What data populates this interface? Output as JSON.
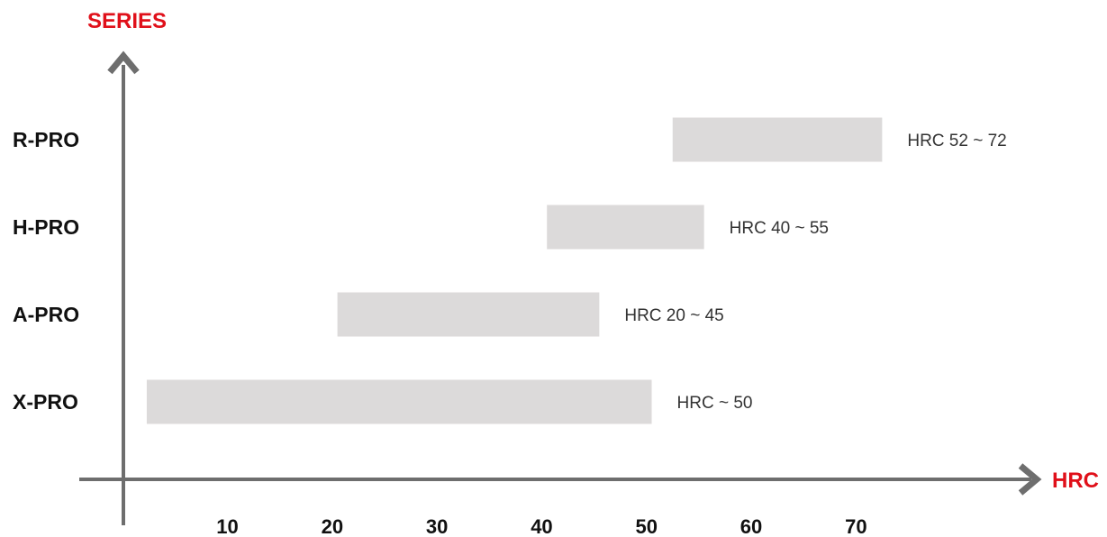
{
  "chart_data": {
    "type": "bar",
    "orientation": "horizontal",
    "range_bars": true,
    "ylabel": "SERIES",
    "xlabel": "HRC",
    "categories": [
      "R-PRO",
      "H-PRO",
      "A-PRO",
      "X-PRO"
    ],
    "ranges": [
      {
        "category": "R-PRO",
        "start": 52,
        "end": 72,
        "label": "HRC 52 ~ 72"
      },
      {
        "category": "H-PRO",
        "start": 40,
        "end": 55,
        "label": "HRC 40 ~ 55"
      },
      {
        "category": "A-PRO",
        "start": 20,
        "end": 45,
        "label": "HRC 20 ~ 45"
      },
      {
        "category": "X-PRO",
        "start": 0,
        "end": 50,
        "label": "HRC ~ 50"
      }
    ],
    "xticks": [
      10,
      20,
      30,
      40,
      50,
      60,
      70
    ],
    "xlim": [
      0,
      75
    ],
    "grid": false,
    "colors": {
      "bar": "#dcdada",
      "axis": "#6e6e6e",
      "axis_title": "#e0101a",
      "text": "#111111"
    }
  }
}
